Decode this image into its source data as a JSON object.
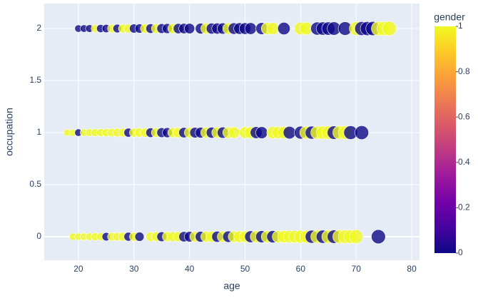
{
  "chart_data": {
    "type": "scatter",
    "x_label": "age",
    "y_label": "occupation",
    "colorbar_title": "gender",
    "x": [
      20,
      21,
      22,
      23,
      24,
      25,
      26,
      27,
      28,
      29,
      30,
      31,
      32,
      33,
      34,
      35,
      36,
      37,
      38,
      39,
      40,
      42,
      43,
      44,
      45,
      46,
      47,
      48,
      49,
      50,
      51,
      53,
      54,
      55,
      57,
      60,
      61,
      63,
      64,
      65,
      66,
      68,
      70,
      71,
      72,
      73,
      74,
      75,
      76,
      18,
      19,
      20,
      21,
      22,
      23,
      24,
      25,
      26,
      27,
      28,
      29,
      30,
      31,
      32,
      33,
      34,
      35,
      36,
      37,
      38,
      39,
      40,
      41,
      42,
      43,
      44,
      45,
      46,
      47,
      48,
      50,
      51,
      52,
      53,
      55,
      56,
      57,
      58,
      60,
      61,
      62,
      63,
      64,
      65,
      66,
      67,
      68,
      69,
      71,
      19,
      20,
      21,
      22,
      23,
      24,
      25,
      26,
      27,
      28,
      29,
      30,
      31,
      33,
      34,
      35,
      36,
      37,
      38,
      39,
      40,
      41,
      42,
      43,
      44,
      45,
      46,
      47,
      48,
      49,
      50,
      51,
      52,
      53,
      54,
      55,
      56,
      57,
      58,
      59,
      60,
      61,
      62,
      63,
      64,
      65,
      66,
      67,
      68,
      69,
      70,
      74
    ],
    "y": [
      2,
      2,
      2,
      2,
      2,
      2,
      2,
      2,
      2,
      2,
      2,
      2,
      2,
      2,
      2,
      2,
      2,
      2,
      2,
      2,
      2,
      2,
      2,
      2,
      2,
      2,
      2,
      2,
      2,
      2,
      2,
      2,
      2,
      2,
      2,
      2,
      2,
      2,
      2,
      2,
      2,
      2,
      2,
      2,
      2,
      2,
      2,
      2,
      2,
      1,
      1,
      1,
      1,
      1,
      1,
      1,
      1,
      1,
      1,
      1,
      1,
      1,
      1,
      1,
      1,
      1,
      1,
      1,
      1,
      1,
      1,
      1,
      1,
      1,
      1,
      1,
      1,
      1,
      1,
      1,
      1,
      1,
      1,
      1,
      1,
      1,
      1,
      1,
      1,
      1,
      1,
      1,
      1,
      1,
      1,
      1,
      1,
      1,
      1,
      0,
      0,
      0,
      0,
      0,
      0,
      0,
      0,
      0,
      0,
      0,
      0,
      0,
      0,
      0,
      0,
      0,
      0,
      0,
      0,
      0,
      0,
      0,
      0,
      0,
      0,
      0,
      0,
      0,
      0,
      0,
      0,
      0,
      0,
      0,
      0,
      0,
      0,
      0,
      0,
      0,
      0,
      0,
      0,
      0,
      0,
      0,
      0,
      0,
      0,
      0,
      0
    ],
    "values": [
      0,
      0,
      0,
      1,
      0,
      0,
      1,
      0,
      1,
      1,
      0,
      0,
      1,
      0,
      1,
      0,
      0,
      1,
      0,
      0,
      0,
      0,
      1,
      0,
      0,
      0,
      1,
      0,
      0,
      0,
      0,
      0,
      1,
      1,
      0,
      1,
      1,
      0,
      0,
      0,
      0,
      0,
      1,
      0,
      0,
      0,
      1,
      1,
      1,
      1,
      1,
      0,
      1,
      1,
      1,
      1,
      1,
      1,
      1,
      1,
      0,
      1,
      1,
      1,
      0,
      1,
      0,
      0,
      1,
      1,
      0,
      1,
      0,
      0,
      1,
      0,
      1,
      0,
      1,
      1,
      1,
      1,
      0,
      0,
      1,
      1,
      1,
      0,
      0,
      1,
      0,
      1,
      1,
      1,
      0,
      1,
      1,
      0,
      0,
      1,
      1,
      1,
      1,
      1,
      1,
      0,
      1,
      1,
      1,
      0,
      1,
      0,
      1,
      1,
      0,
      1,
      1,
      1,
      0,
      0,
      1,
      0,
      1,
      1,
      0,
      1,
      0,
      1,
      1,
      1,
      0,
      1,
      0,
      1,
      0,
      1,
      1,
      1,
      1,
      1,
      1,
      0,
      1,
      0,
      1,
      0,
      1,
      1,
      1,
      1,
      0
    ],
    "xlim": [
      13.85,
      81.4
    ],
    "ylim": [
      -0.226,
      2.24
    ],
    "xticks": [
      20,
      30,
      40,
      50,
      60,
      70,
      80
    ],
    "yticks": [
      0,
      0.5,
      1,
      1.5,
      2
    ],
    "colorbar": {
      "range": [
        0,
        1
      ],
      "ticks": [
        0,
        0.2,
        0.4,
        0.6,
        0.8,
        1
      ]
    },
    "colorscale": [
      "#0d0887",
      "#46039f",
      "#7201a8",
      "#9c179e",
      "#bd3786",
      "#d8576b",
      "#ed7953",
      "#fb9f3a",
      "#fdca26",
      "#f0f921"
    ],
    "grid": true
  }
}
